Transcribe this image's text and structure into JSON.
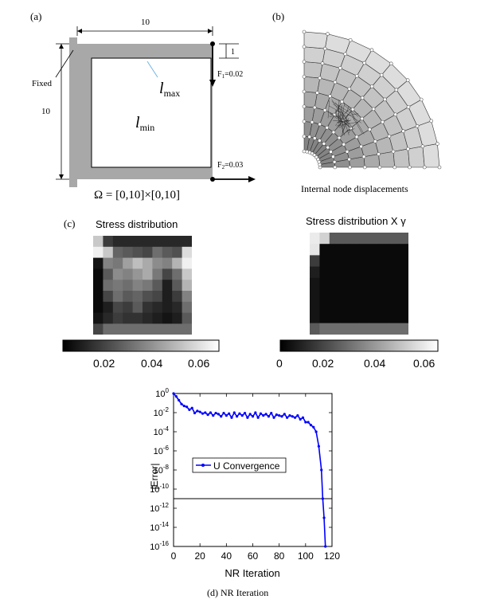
{
  "panel_a": {
    "label": "(a)",
    "dim_width": "10",
    "dim_height": "10",
    "dim_thickness": "1",
    "fixed": "Fixed",
    "lmax": "l",
    "lmax_sub": "max",
    "lmin": "l",
    "lmin_sub": "min",
    "f1": "F",
    "f1_sub": "1",
    "f1_val": "=0.02",
    "f2": "F",
    "f2_sub": "2",
    "f2_val": "=0.03",
    "domain": "Ω = [0,10]×[0,10]"
  },
  "panel_b": {
    "label": "(b)",
    "caption": "Internal node displacements"
  },
  "panel_c": {
    "label": "(c)",
    "left_title": "Stress distribution",
    "right_title": "Stress distribution X γ",
    "left_ticks": [
      "0.02",
      "0.04",
      "0.06"
    ],
    "right_ticks": [
      "0",
      "0.02",
      "0.04",
      "0.06"
    ]
  },
  "chart_data": {
    "type": "line",
    "title": "",
    "xlabel": "NR Iteration",
    "ylabel": "|Error|",
    "xlim": [
      0,
      120
    ],
    "ylim_log10": [
      -16,
      0
    ],
    "yscale": "log",
    "x_ticks": [
      "0",
      "20",
      "40",
      "60",
      "80",
      "100",
      "120"
    ],
    "y_ticks": [
      {
        "base": "10",
        "exp": "0"
      },
      {
        "base": "10",
        "exp": "-2"
      },
      {
        "base": "10",
        "exp": "-4"
      },
      {
        "base": "10",
        "exp": "-6"
      },
      {
        "base": "10",
        "exp": "-8"
      },
      {
        "base": "10",
        "exp": "-10"
      },
      {
        "base": "10",
        "exp": "-12"
      },
      {
        "base": "10",
        "exp": "-14"
      },
      {
        "base": "10",
        "exp": "-16"
      }
    ],
    "threshold_y": 1e-11,
    "legend": "U Convergence",
    "legend_position": "center-left",
    "series": [
      {
        "name": "U Convergence",
        "color": "#0000ff",
        "x": [
          0,
          2,
          4,
          6,
          8,
          10,
          12,
          14,
          16,
          18,
          20,
          22,
          24,
          26,
          28,
          30,
          32,
          34,
          36,
          38,
          40,
          42,
          44,
          46,
          48,
          50,
          52,
          54,
          56,
          58,
          60,
          62,
          64,
          66,
          68,
          70,
          72,
          74,
          76,
          78,
          80,
          82,
          84,
          86,
          88,
          90,
          92,
          94,
          96,
          98,
          100,
          102,
          104,
          106,
          108,
          110,
          112,
          113,
          114,
          115
        ],
        "y": [
          1,
          0.5,
          0.2,
          0.08,
          0.05,
          0.04,
          0.02,
          0.03,
          0.009,
          0.015,
          0.012,
          0.008,
          0.01,
          0.006,
          0.01,
          0.005,
          0.009,
          0.007,
          0.004,
          0.009,
          0.005,
          0.008,
          0.003,
          0.01,
          0.004,
          0.008,
          0.005,
          0.009,
          0.003,
          0.007,
          0.004,
          0.01,
          0.003,
          0.008,
          0.005,
          0.007,
          0.004,
          0.009,
          0.003,
          0.006,
          0.005,
          0.004,
          0.007,
          0.003,
          0.005,
          0.004,
          0.003,
          0.005,
          0.002,
          0.003,
          0.001,
          0.001,
          0.0005,
          0.0003,
          0.0001,
          3e-06,
          1e-08,
          1e-11,
          1e-13,
          1e-16
        ]
      }
    ]
  },
  "panel_d": {
    "caption": "(d) NR Iteration"
  }
}
